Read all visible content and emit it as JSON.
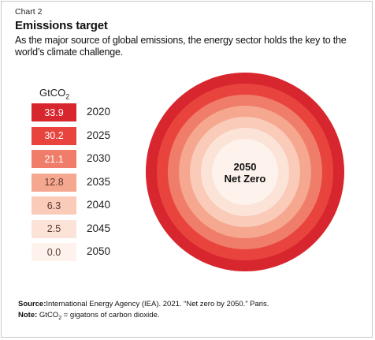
{
  "header": {
    "eyebrow": "Chart 2",
    "title": "Emissions target",
    "subtitle": "As the major source of global emissions, the energy sector holds the key to the world’s climate challenge."
  },
  "legend": {
    "unit_prefix": "GtCO",
    "unit_sub": "2"
  },
  "center_label": {
    "line1": "2050",
    "line2": "Net Zero"
  },
  "footer": {
    "source_label": "Source:",
    "source_text": "International Energy Agency (IEA). 2021. “Net zero by 2050.” Paris.",
    "note_label": "Note:",
    "note_prefix": "GtCO",
    "note_sub": "2",
    "note_text": " = gigatons of carbon dioxide."
  },
  "chart_data": {
    "type": "table",
    "categories": [
      "2020",
      "2025",
      "2030",
      "2035",
      "2040",
      "2045",
      "2050"
    ],
    "values": [
      33.9,
      30.2,
      21.1,
      12.8,
      6.3,
      2.5,
      0.0
    ],
    "value_labels": [
      "33.9",
      "30.2",
      "21.1",
      "12.8",
      "6.3",
      "2.5",
      "0.0"
    ],
    "colors": [
      "#d8262e",
      "#e8443d",
      "#f07d6a",
      "#f5a78f",
      "#f9cbb8",
      "#fce3d7",
      "#fdf2ec"
    ],
    "label_colors": [
      "#ffffff",
      "#ffffff",
      "#ffffff",
      "#5a3a35",
      "#5a3a35",
      "#5a3a35",
      "#5a3a35"
    ]
  }
}
